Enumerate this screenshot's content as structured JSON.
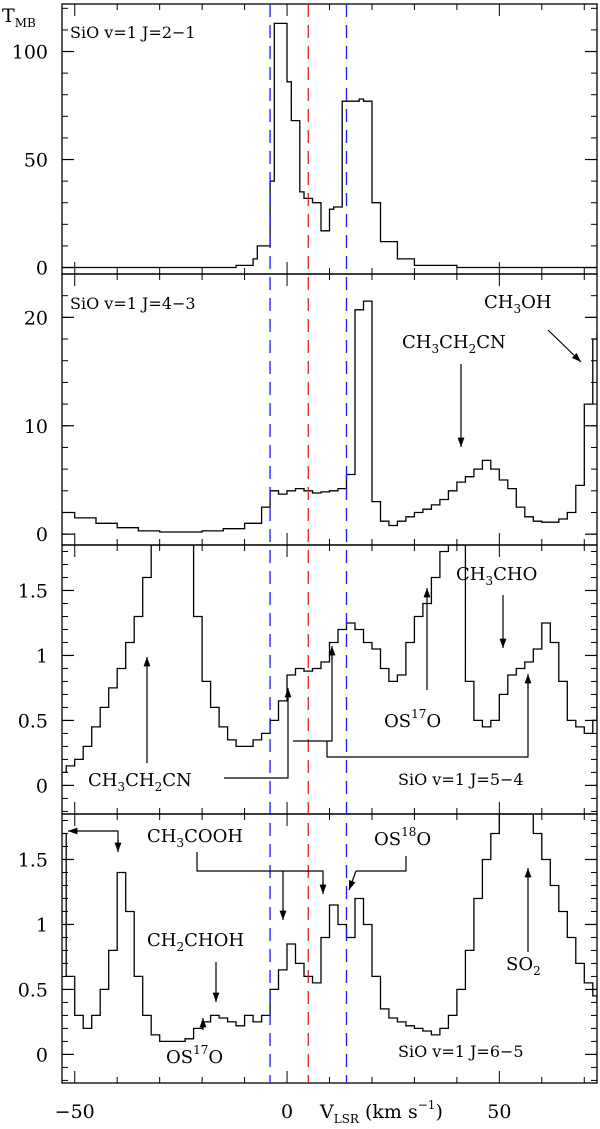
{
  "chart_data": [
    {
      "type": "line",
      "panel_label": "SiO v=1 J=2−1",
      "ylabel": "T",
      "ylabel_sub": "MB",
      "ylim": [
        -3,
        122
      ],
      "yticks": [
        0,
        50,
        100
      ],
      "xlim": [
        -53,
        73
      ],
      "xticks": [
        -50,
        0,
        50
      ],
      "series": [
        {
          "x": [
            -53,
            -21,
            -12,
            -8,
            -7,
            -4,
            -3,
            0,
            1,
            3,
            4,
            6,
            8,
            10,
            11,
            13,
            14,
            17,
            18,
            20,
            22,
            26,
            30,
            40,
            50,
            73
          ],
          "y": [
            0,
            0,
            1,
            4,
            10,
            40,
            113,
            86,
            68,
            35,
            32,
            30,
            17,
            27,
            28,
            77,
            77,
            78,
            77,
            30,
            12,
            4,
            1,
            0,
            0,
            0
          ]
        }
      ],
      "annotations": []
    },
    {
      "type": "line",
      "panel_label": "SiO v=1 J=4−3",
      "ylim": [
        -1,
        24
      ],
      "yticks": [
        0,
        10,
        20
      ],
      "xlim": [
        -53,
        73
      ],
      "series": [
        {
          "x": [
            -53,
            -50,
            -45,
            -40,
            -35,
            -30,
            -25,
            -20,
            -15,
            -10,
            -6,
            -4,
            -2,
            0,
            2,
            4,
            6,
            8,
            10,
            12,
            14,
            16,
            18,
            20,
            22,
            24,
            26,
            28,
            30,
            32,
            34,
            36,
            38,
            40,
            42,
            44,
            46,
            48,
            50,
            52,
            54,
            56,
            58,
            60,
            62,
            64,
            66,
            68,
            70,
            72,
            73
          ],
          "y": [
            2,
            1.5,
            1,
            0.6,
            0.3,
            0.2,
            0.2,
            0.3,
            0.5,
            1,
            2.5,
            4,
            3.7,
            4,
            4.2,
            4,
            3.8,
            3.9,
            4,
            4.2,
            5.5,
            20.7,
            21.5,
            3,
            1.2,
            0.8,
            1.2,
            1.6,
            2,
            2.3,
            2.7,
            3.2,
            4,
            4.8,
            5.3,
            6,
            6.8,
            6,
            5,
            4.2,
            2.5,
            1.6,
            1.2,
            1.1,
            1.1,
            1.4,
            2,
            4.5,
            12,
            18,
            18.5
          ]
        }
      ],
      "annotations": [
        {
          "text": "CH3CH2CN",
          "parts": [
            "CH",
            "3",
            "CH",
            "2",
            "CN"
          ]
        },
        {
          "text": "CH3OH",
          "parts": [
            "CH",
            "3",
            "OH"
          ]
        }
      ]
    },
    {
      "type": "line",
      "panel_label": "SiO v=1 J=5−4",
      "ylim": [
        -0.22,
        1.85
      ],
      "yticks": [
        0,
        0.5,
        1,
        1.5
      ],
      "ytick_labels": [
        "0",
        "0.5",
        "1",
        "1.5"
      ],
      "xlim": [
        -53,
        73
      ],
      "series": [
        {
          "x": [
            -53,
            -52,
            -50,
            -48,
            -46,
            -44,
            -42,
            -40,
            -38,
            -36,
            -34,
            -32,
            -30,
            -28,
            -26,
            -24,
            -22,
            -20,
            -18,
            -16,
            -14,
            -12,
            -10,
            -8,
            -6,
            -4,
            -2,
            0,
            2,
            4,
            6,
            8,
            10,
            12,
            14,
            16,
            18,
            20,
            22,
            24,
            26,
            28,
            30,
            32,
            34,
            36,
            38,
            40,
            42,
            44,
            46,
            48,
            50,
            52,
            54,
            56,
            58,
            60,
            62,
            64,
            66,
            68,
            70,
            72,
            73
          ],
          "y": [
            0.1,
            0.15,
            0.2,
            0.3,
            0.45,
            0.6,
            0.75,
            0.9,
            1.1,
            1.3,
            1.6,
            1.85,
            1.85,
            1.85,
            1.85,
            1.85,
            1.3,
            0.8,
            0.6,
            0.45,
            0.35,
            0.3,
            0.3,
            0.35,
            0.4,
            0.5,
            0.65,
            0.85,
            0.9,
            0.88,
            0.9,
            0.95,
            1.1,
            1.2,
            1.25,
            1.2,
            1.1,
            1.05,
            0.9,
            0.8,
            0.85,
            1.1,
            1.3,
            1.4,
            1.6,
            1.8,
            1.85,
            1.85,
            0.8,
            0.5,
            0.45,
            0.5,
            0.7,
            0.85,
            0.9,
            0.95,
            1.05,
            1.25,
            1.1,
            0.8,
            0.5,
            0.45,
            0.4,
            0.5,
            0.7
          ]
        }
      ],
      "annotations": [
        {
          "text": "CH3CHO",
          "parts": [
            "CH",
            "3",
            "CHO"
          ]
        },
        {
          "text": "OS17O",
          "parts": [
            "OS",
            "17",
            "O"
          ]
        },
        {
          "text": "CH3CH2CN",
          "parts": [
            "CH",
            "3",
            "CH",
            "2",
            "CN"
          ]
        }
      ]
    },
    {
      "type": "line",
      "panel_label": "SiO v=1 J=6−5",
      "ylim": [
        -0.22,
        1.85
      ],
      "yticks": [
        0,
        0.5,
        1,
        1.5
      ],
      "ytick_labels": [
        "0",
        "0.5",
        "1",
        "1.5"
      ],
      "xlim": [
        -53,
        73
      ],
      "xlabel": "V",
      "xlabel_sub": "LSR",
      "xlabel_unit": "(km s",
      "xlabel_exp": "−1",
      "xlabel_end": ")",
      "series": [
        {
          "x": [
            -53,
            -52,
            -50,
            -48,
            -46,
            -44,
            -42,
            -40,
            -38,
            -36,
            -34,
            -32,
            -30,
            -28,
            -26,
            -24,
            -22,
            -20,
            -18,
            -16,
            -14,
            -12,
            -10,
            -8,
            -6,
            -4,
            -2,
            0,
            2,
            4,
            6,
            8,
            10,
            12,
            14,
            16,
            18,
            20,
            22,
            24,
            26,
            28,
            30,
            32,
            34,
            36,
            38,
            40,
            42,
            44,
            46,
            48,
            50,
            52,
            54,
            56,
            58,
            60,
            62,
            64,
            66,
            68,
            70,
            72,
            73
          ],
          "y": [
            1.7,
            0.6,
            0.3,
            0.2,
            0.3,
            0.5,
            0.8,
            1.4,
            1.1,
            0.6,
            0.3,
            0.15,
            0.1,
            0.1,
            0.1,
            0.12,
            0.2,
            0.25,
            0.3,
            0.28,
            0.25,
            0.22,
            0.3,
            0.25,
            0.3,
            0.5,
            0.65,
            0.85,
            0.7,
            0.6,
            0.55,
            0.9,
            1.15,
            1.0,
            0.9,
            1.2,
            1.0,
            0.6,
            0.35,
            0.28,
            0.25,
            0.22,
            0.2,
            0.18,
            0.15,
            0.2,
            0.3,
            0.5,
            0.8,
            1.2,
            1.5,
            1.7,
            1.85,
            1.85,
            1.85,
            1.85,
            1.7,
            1.5,
            1.3,
            1.1,
            0.9,
            0.7,
            0.55,
            0.45,
            0.4
          ]
        }
      ],
      "annotations": [
        {
          "text": "CH3COOH",
          "parts": [
            "CH",
            "3",
            "COOH"
          ]
        },
        {
          "text": "OS18O",
          "parts": [
            "OS",
            "18",
            "O"
          ]
        },
        {
          "text": "CH2CHOH",
          "parts": [
            "CH",
            "2",
            "CHOH"
          ]
        },
        {
          "text": "OS17O",
          "parts": [
            "OS",
            "17",
            "O"
          ]
        },
        {
          "text": "SO2",
          "parts": [
            "SO",
            "2"
          ]
        }
      ]
    }
  ],
  "vlines": [
    {
      "x": -4,
      "color": "#1a1aff"
    },
    {
      "x": 5,
      "color": "#e02020"
    },
    {
      "x": 14,
      "color": "#1a1aff"
    }
  ],
  "colors": {
    "spectrum": "#000000",
    "blue_dash": "#1a1aff",
    "red_dash": "#e02020"
  }
}
